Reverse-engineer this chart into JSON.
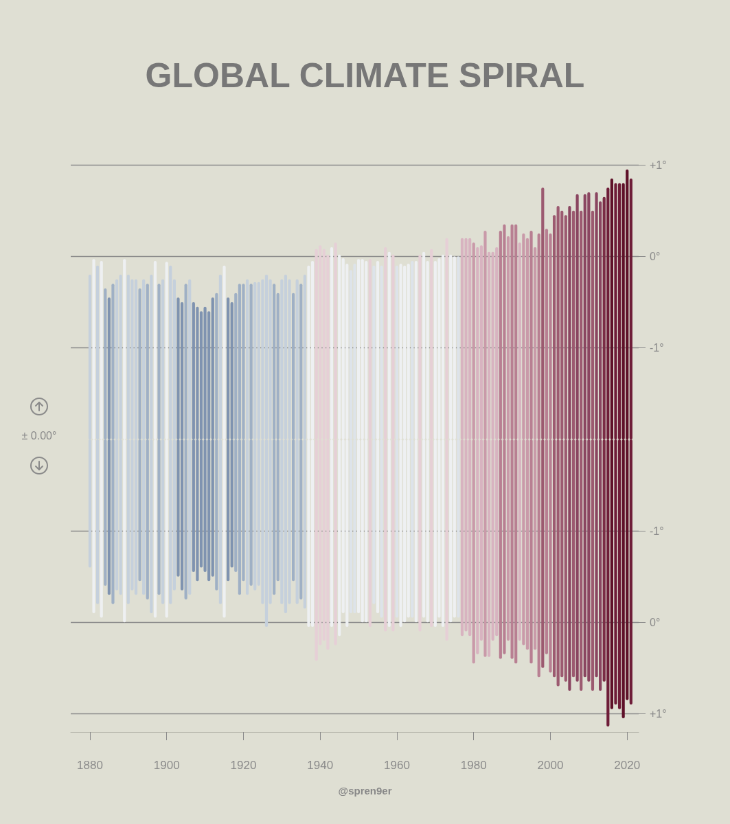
{
  "chart_data": [
    {
      "type": "bar",
      "title": "GLOBAL CLIMATE SPIRAL",
      "annotations": [
        "± 0.00°"
      ],
      "x": [
        1880,
        1881,
        1882,
        1883,
        1884,
        1885,
        1886,
        1887,
        1888,
        1889,
        1890,
        1891,
        1892,
        1893,
        1894,
        1895,
        1896,
        1897,
        1898,
        1899,
        1900,
        1901,
        1902,
        1903,
        1904,
        1905,
        1906,
        1907,
        1908,
        1909,
        1910,
        1911,
        1912,
        1913,
        1914,
        1915,
        1916,
        1917,
        1918,
        1919,
        1920,
        1921,
        1922,
        1923,
        1924,
        1925,
        1926,
        1927,
        1928,
        1929,
        1930,
        1931,
        1932,
        1933,
        1934,
        1935,
        1936,
        1937,
        1938,
        1939,
        1940,
        1941,
        1942,
        1943,
        1944,
        1945,
        1946,
        1947,
        1948,
        1949,
        1950,
        1951,
        1952,
        1953,
        1954,
        1955,
        1956,
        1957,
        1958,
        1959,
        1960,
        1961,
        1962,
        1963,
        1964,
        1965,
        1966,
        1967,
        1968,
        1969,
        1970,
        1971,
        1972,
        1973,
        1974,
        1975,
        1976,
        1977,
        1978,
        1979,
        1980,
        1981,
        1982,
        1983,
        1984,
        1985,
        1986,
        1987,
        1988,
        1989,
        1990,
        1991,
        1992,
        1993,
        1994,
        1995,
        1996,
        1997,
        1998,
        1999,
        2000,
        2001,
        2002,
        2003,
        2004,
        2005,
        2006,
        2007,
        2008,
        2009,
        2010,
        2011,
        2012,
        2013,
        2014,
        2015,
        2016,
        2017,
        2018,
        2019,
        2020,
        2021
      ],
      "base": [
        -2,
        -2,
        -2,
        -2,
        -2,
        -2,
        -2,
        -2,
        -2,
        -2,
        -2,
        -2,
        -2,
        -2,
        -2,
        -2,
        -2,
        -2,
        -2,
        -2,
        -2,
        -2,
        -2,
        -2,
        -2,
        -2,
        -2,
        -2,
        -2,
        -2,
        -2,
        -2,
        -2,
        -2,
        -2,
        -2,
        -2,
        -2,
        -2,
        -2,
        -2,
        -2,
        -2,
        -2,
        -2,
        -2,
        -2,
        -2,
        -2,
        -2,
        -2,
        -2,
        -2,
        -2,
        -2,
        -2,
        -2,
        -2,
        -2,
        -2,
        -2,
        -2,
        -2,
        -2,
        -2,
        -2,
        -2,
        -2,
        -2,
        -2,
        -2,
        -2,
        -2,
        -2,
        -2,
        -2,
        -2,
        -2,
        -2,
        -2,
        -2,
        -2,
        -2,
        -2,
        -2,
        -2,
        -2,
        -2,
        -2,
        -2,
        -2,
        -2,
        -2,
        -2,
        -2,
        -2,
        -2,
        -2,
        -2,
        -2,
        -2,
        -2,
        -2,
        -2,
        -2,
        -2,
        -2,
        -2,
        -2,
        -2,
        -2,
        -2,
        -2,
        -2,
        -2,
        -2,
        -2,
        -2,
        -2,
        -2,
        -2,
        -2,
        -2,
        -2,
        -2,
        -2,
        -2,
        -2,
        -2,
        -2,
        -2,
        -2,
        -2,
        -2,
        -2,
        -2,
        -2,
        -2,
        -2,
        -2,
        -2,
        -2
      ],
      "values": [
        1.8,
        1.97,
        1.9,
        1.95,
        1.65,
        1.55,
        1.7,
        1.75,
        1.8,
        1.97,
        1.8,
        1.75,
        1.75,
        1.65,
        1.75,
        1.7,
        1.8,
        1.95,
        1.7,
        1.75,
        1.94,
        1.9,
        1.75,
        1.55,
        1.5,
        1.7,
        1.75,
        1.5,
        1.45,
        1.4,
        1.45,
        1.4,
        1.55,
        1.6,
        1.8,
        1.9,
        1.55,
        1.5,
        1.6,
        1.7,
        1.7,
        1.75,
        1.7,
        1.72,
        1.72,
        1.75,
        1.8,
        1.75,
        1.7,
        1.6,
        1.75,
        1.8,
        1.75,
        1.6,
        1.75,
        1.7,
        1.8,
        1.9,
        1.95,
        2.08,
        2.12,
        2.08,
        2.02,
        2.1,
        2.15,
        2.02,
        1.98,
        1.92,
        1.85,
        1.92,
        1.97,
        1.97,
        1.95,
        1.97,
        1.9,
        1.95,
        1.9,
        2.1,
        2.05,
        2.02,
        1.9,
        1.92,
        1.9,
        1.92,
        1.95,
        1.95,
        2.02,
        2.05,
        1.95,
        2.08,
        1.95,
        1.98,
        2.02,
        2.2,
        2.02,
        2,
        2,
        2.2,
        2.2,
        2.2,
        2.15,
        2.1,
        2.12,
        2.28,
        2.05,
        2.05,
        2.1,
        2.28,
        2.35,
        2.22,
        2.35,
        2.35,
        2.15,
        2.25,
        2.2,
        2.28,
        2.1,
        2.25,
        2.75,
        2.3,
        2.25,
        2.45,
        2.55,
        2.5,
        2.45,
        2.55,
        2.5,
        2.68,
        2.5,
        2.68,
        2.7,
        2.5,
        2.7,
        2.6,
        2.65,
        2.75,
        2.85,
        2.8,
        2.8,
        2.8,
        2.95,
        2.85
      ],
      "colors": [
        "#c5d0dc",
        "#eef0f2",
        "#c5d0dc",
        "#eef0f2",
        "#9fb0c5",
        "#7f93b0",
        "#9fb0c5",
        "#c5d0dc",
        "#c5d0dc",
        "#eef0f2",
        "#c5d0dc",
        "#c5d0dc",
        "#c5d0dc",
        "#9fb0c5",
        "#c5d0dc",
        "#9fb0c5",
        "#c5d0dc",
        "#eef0f2",
        "#9fb0c5",
        "#c5d0dc",
        "#eef0f2",
        "#c5d0dc",
        "#c5d0dc",
        "#7f93b0",
        "#7f93b0",
        "#9fb0c5",
        "#c5d0dc",
        "#7f93b0",
        "#7f93b0",
        "#7f93b0",
        "#7f93b0",
        "#7f93b0",
        "#7f93b0",
        "#9fb0c5",
        "#c5d0dc",
        "#eef0f2",
        "#7f93b0",
        "#7f93b0",
        "#9fb0c5",
        "#9fb0c5",
        "#9fb0c5",
        "#c5d0dc",
        "#9fb0c5",
        "#c5d0dc",
        "#c5d0dc",
        "#c5d0dc",
        "#c5d0dc",
        "#c5d0dc",
        "#9fb0c5",
        "#9fb0c5",
        "#c5d0dc",
        "#c5d0dc",
        "#c5d0dc",
        "#9fb0c5",
        "#c5d0dc",
        "#9fb0c5",
        "#c5d0dc",
        "#eef0f2",
        "#eef0f2",
        "#e6cfd6",
        "#e6cfd6",
        "#e6cfd6",
        "#e6cfd6",
        "#eef0f2",
        "#e6cfd6",
        "#eef0f2",
        "#eef0f2",
        "#eef0f2",
        "#dde3ea",
        "#dde3ea",
        "#eef0f2",
        "#eef0f2",
        "#eef0f2",
        "#e6cfd6",
        "#dde3ea",
        "#eef0f2",
        "#dde3ea",
        "#e6cfd6",
        "#eef0f2",
        "#e6cfd6",
        "#dde3ea",
        "#eef0f2",
        "#eef0f2",
        "#eef0f2",
        "#dde3ea",
        "#eef0f2",
        "#e6cfd6",
        "#eef0f2",
        "#eef0f2",
        "#e6cfd6",
        "#eef0f2",
        "#eef0f2",
        "#eef0f2",
        "#e6cfd6",
        "#eef0f2",
        "#eef0f2",
        "#dde3ea",
        "#d8b3c0",
        "#d8b3c0",
        "#d8b3c0",
        "#c99aa9",
        "#d8b3c0",
        "#d8b3c0",
        "#c99aa9",
        "#d8b3c0",
        "#d8b3c0",
        "#d8b3c0",
        "#b87f92",
        "#b87f92",
        "#c99aa9",
        "#b87f92",
        "#b87f92",
        "#d8b3c0",
        "#c99aa9",
        "#c99aa9",
        "#b87f92",
        "#c99aa9",
        "#b87f92",
        "#9c5a70",
        "#b87f92",
        "#b87f92",
        "#9c5a70",
        "#9c5a70",
        "#9c5a70",
        "#9c5a70",
        "#8a4560",
        "#9c5a70",
        "#8a4560",
        "#9c5a70",
        "#8a4560",
        "#8a4560",
        "#9c5a70",
        "#8a4560",
        "#8a4560",
        "#7a2c45",
        "#6e1d38",
        "#5e1028",
        "#6e1d38",
        "#6e1d38",
        "#5e1028",
        "#5e1028",
        "#6e1d38"
      ],
      "xlim": [
        1875,
        2023
      ],
      "ylim": [
        -2,
        1
      ],
      "yticks": [
        {
          "value": 1,
          "label": "+1°"
        },
        {
          "value": 0,
          "label": "0°"
        },
        {
          "value": -1,
          "label": "-1°"
        }
      ],
      "tick_labels": "y",
      "grid": "y"
    },
    {
      "type": "bar",
      "annotations": [
        "@spren9er"
      ],
      "x": [
        1880,
        1881,
        1882,
        1883,
        1884,
        1885,
        1886,
        1887,
        1888,
        1889,
        1890,
        1891,
        1892,
        1893,
        1894,
        1895,
        1896,
        1897,
        1898,
        1899,
        1900,
        1901,
        1902,
        1903,
        1904,
        1905,
        1906,
        1907,
        1908,
        1909,
        1910,
        1911,
        1912,
        1913,
        1914,
        1915,
        1916,
        1917,
        1918,
        1919,
        1920,
        1921,
        1922,
        1923,
        1924,
        1925,
        1926,
        1927,
        1928,
        1929,
        1930,
        1931,
        1932,
        1933,
        1934,
        1935,
        1936,
        1937,
        1938,
        1939,
        1940,
        1941,
        1942,
        1943,
        1944,
        1945,
        1946,
        1947,
        1948,
        1949,
        1950,
        1951,
        1952,
        1953,
        1954,
        1955,
        1956,
        1957,
        1958,
        1959,
        1960,
        1961,
        1962,
        1963,
        1964,
        1965,
        1966,
        1967,
        1968,
        1969,
        1970,
        1971,
        1972,
        1973,
        1974,
        1975,
        1976,
        1977,
        1978,
        1979,
        1980,
        1981,
        1982,
        1983,
        1984,
        1985,
        1986,
        1987,
        1988,
        1989,
        1990,
        1991,
        1992,
        1993,
        1994,
        1995,
        1996,
        1997,
        1998,
        1999,
        2000,
        2001,
        2002,
        2003,
        2004,
        2005,
        2006,
        2007,
        2008,
        2009,
        2010,
        2011,
        2012,
        2013,
        2014,
        2015,
        2016,
        2017,
        2018,
        2019,
        2020,
        2021
      ],
      "base": [
        -2,
        -2,
        -2,
        -2,
        -2,
        -2,
        -2,
        -2,
        -2,
        -2,
        -2,
        -2,
        -2,
        -2,
        -2,
        -2,
        -2,
        -2,
        -2,
        -2,
        -2,
        -2,
        -2,
        -2,
        -2,
        -2,
        -2,
        -2,
        -2,
        -2,
        -2,
        -2,
        -2,
        -2,
        -2,
        -2,
        -2,
        -2,
        -2,
        -2,
        -2,
        -2,
        -2,
        -2,
        -2,
        -2,
        -2,
        -2,
        -2,
        -2,
        -2,
        -2,
        -2,
        -2,
        -2,
        -2,
        -2,
        -2,
        -2,
        -2,
        -2,
        -2,
        -2,
        -2,
        -2,
        -2,
        -2,
        -2,
        -2,
        -2,
        -2,
        -2,
        -2,
        -2,
        -2,
        -2,
        -2,
        -2,
        -2,
        -2,
        -2,
        -2,
        -2,
        -2,
        -2,
        -2,
        -2,
        -2,
        -2,
        -2,
        -2,
        -2,
        -2,
        -2,
        -2,
        -2,
        -2,
        -2,
        -2,
        -2,
        -2,
        -2,
        -2,
        -2,
        -2,
        -2,
        -2,
        -2,
        -2,
        -2,
        -2,
        -2,
        -2,
        -2,
        -2,
        -2,
        -2,
        -2,
        -2,
        -2,
        -2,
        -2,
        -2,
        -2,
        -2,
        -2,
        -2,
        -2,
        -2,
        -2,
        -2,
        -2,
        -2,
        -2,
        -2,
        -2,
        -2,
        -2,
        -2,
        -2,
        -2,
        -2
      ],
      "values": [
        1.4,
        1.9,
        1.8,
        1.95,
        1.6,
        1.7,
        1.8,
        1.65,
        1.7,
        2,
        1.8,
        1.65,
        1.7,
        1.55,
        1.7,
        1.75,
        1.9,
        1.95,
        1.7,
        1.8,
        1.95,
        1.8,
        1.65,
        1.5,
        1.65,
        1.75,
        1.7,
        1.45,
        1.55,
        1.4,
        1.45,
        1.55,
        1.5,
        1.65,
        1.8,
        1.95,
        1.55,
        1.4,
        1.45,
        1.7,
        1.55,
        1.7,
        1.6,
        1.65,
        1.6,
        1.8,
        2.05,
        1.8,
        1.7,
        1.55,
        1.8,
        1.9,
        1.8,
        1.55,
        1.8,
        1.75,
        1.85,
        2.05,
        2.05,
        2.42,
        2.25,
        2.2,
        2.3,
        2.05,
        2.25,
        2.15,
        1.9,
        2.05,
        1.9,
        1.9,
        1.9,
        2,
        2,
        2.05,
        1.8,
        1.9,
        1.95,
        2.1,
        2.05,
        2.1,
        1.95,
        2.05,
        2,
        1.95,
        1.95,
        2,
        2.1,
        1.95,
        2,
        2.05,
        2.05,
        1.95,
        2.05,
        2.2,
        2,
        1.95,
        1.95,
        2.15,
        2.1,
        2.15,
        2.45,
        2.35,
        2.2,
        2.38,
        2.38,
        2.2,
        2.15,
        2.4,
        2.35,
        2.2,
        2.4,
        2.45,
        2.2,
        2.25,
        2.3,
        2.45,
        2.3,
        2.6,
        2.5,
        2.35,
        2.55,
        2.6,
        2.7,
        2.6,
        2.65,
        2.75,
        2.6,
        2.65,
        2.75,
        2.6,
        2.65,
        2.75,
        2.6,
        2.75,
        2.65,
        3.14,
        2.95,
        2.9,
        2.95,
        3.05,
        2.85,
        2.9
      ],
      "colors": [
        "#c5d0dc",
        "#eef0f2",
        "#c5d0dc",
        "#eef0f2",
        "#9fb0c5",
        "#7f93b0",
        "#9fb0c5",
        "#c5d0dc",
        "#c5d0dc",
        "#eef0f2",
        "#c5d0dc",
        "#c5d0dc",
        "#c5d0dc",
        "#9fb0c5",
        "#c5d0dc",
        "#9fb0c5",
        "#c5d0dc",
        "#eef0f2",
        "#9fb0c5",
        "#c5d0dc",
        "#eef0f2",
        "#c5d0dc",
        "#c5d0dc",
        "#7f93b0",
        "#7f93b0",
        "#9fb0c5",
        "#c5d0dc",
        "#7f93b0",
        "#7f93b0",
        "#7f93b0",
        "#7f93b0",
        "#7f93b0",
        "#7f93b0",
        "#9fb0c5",
        "#c5d0dc",
        "#eef0f2",
        "#7f93b0",
        "#7f93b0",
        "#9fb0c5",
        "#9fb0c5",
        "#9fb0c5",
        "#c5d0dc",
        "#9fb0c5",
        "#c5d0dc",
        "#c5d0dc",
        "#c5d0dc",
        "#c5d0dc",
        "#c5d0dc",
        "#9fb0c5",
        "#9fb0c5",
        "#c5d0dc",
        "#c5d0dc",
        "#c5d0dc",
        "#9fb0c5",
        "#c5d0dc",
        "#9fb0c5",
        "#c5d0dc",
        "#eef0f2",
        "#eef0f2",
        "#e6cfd6",
        "#e6cfd6",
        "#e6cfd6",
        "#e6cfd6",
        "#eef0f2",
        "#e6cfd6",
        "#eef0f2",
        "#eef0f2",
        "#eef0f2",
        "#dde3ea",
        "#dde3ea",
        "#eef0f2",
        "#eef0f2",
        "#eef0f2",
        "#e6cfd6",
        "#dde3ea",
        "#eef0f2",
        "#dde3ea",
        "#e6cfd6",
        "#eef0f2",
        "#e6cfd6",
        "#dde3ea",
        "#eef0f2",
        "#eef0f2",
        "#eef0f2",
        "#dde3ea",
        "#eef0f2",
        "#e6cfd6",
        "#eef0f2",
        "#eef0f2",
        "#e6cfd6",
        "#eef0f2",
        "#eef0f2",
        "#eef0f2",
        "#e6cfd6",
        "#eef0f2",
        "#eef0f2",
        "#dde3ea",
        "#d8b3c0",
        "#d8b3c0",
        "#d8b3c0",
        "#c99aa9",
        "#d8b3c0",
        "#d8b3c0",
        "#c99aa9",
        "#d8b3c0",
        "#d8b3c0",
        "#d8b3c0",
        "#b87f92",
        "#b87f92",
        "#c99aa9",
        "#b87f92",
        "#b87f92",
        "#d8b3c0",
        "#c99aa9",
        "#c99aa9",
        "#b87f92",
        "#c99aa9",
        "#b87f92",
        "#9c5a70",
        "#b87f92",
        "#b87f92",
        "#9c5a70",
        "#9c5a70",
        "#9c5a70",
        "#9c5a70",
        "#8a4560",
        "#9c5a70",
        "#8a4560",
        "#9c5a70",
        "#8a4560",
        "#8a4560",
        "#9c5a70",
        "#8a4560",
        "#8a4560",
        "#7a2c45",
        "#6e1d38",
        "#5e1028",
        "#6e1d38",
        "#6e1d38",
        "#5e1028",
        "#5e1028",
        "#6e1d38"
      ],
      "xlim": [
        1875,
        2023
      ],
      "xticks": [
        1880,
        1900,
        1920,
        1940,
        1960,
        1980,
        2000,
        2020
      ],
      "ylim": [
        1.2,
        -2
      ],
      "yticks": [
        {
          "value": -1,
          "label": "-1°"
        },
        {
          "value": 0,
          "label": "0°"
        },
        {
          "value": 1,
          "label": "+1°"
        }
      ],
      "grid": "y"
    }
  ]
}
